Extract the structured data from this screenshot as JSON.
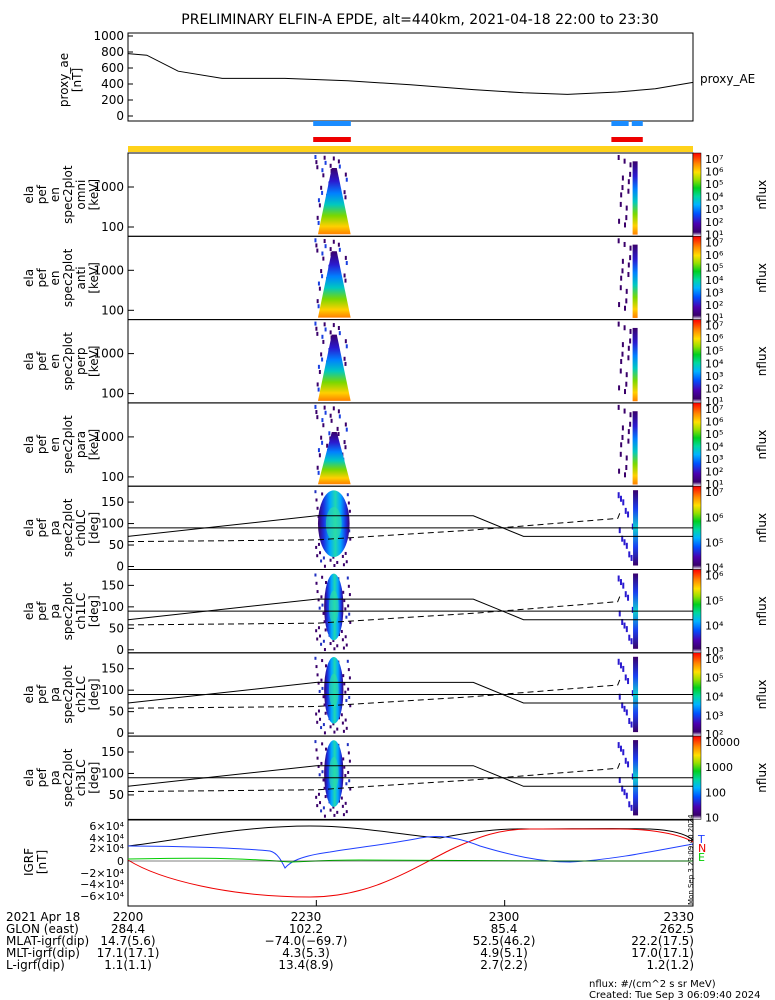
{
  "title": "PRELIMINARY ELFIN-A EPDE, alt=440km, 2021-04-18 22:00 to 23:30",
  "panels": {
    "proxy_ae": {
      "ylabel_lines": [
        "proxy_ae",
        "[nT]"
      ],
      "legend": "proxy_AE",
      "yticks": [
        "1000",
        "800",
        "600",
        "400",
        "200",
        "0"
      ],
      "ylim": [
        0,
        1000
      ]
    },
    "spectra": [
      {
        "ylabel_lines": [
          "ela",
          "pef",
          "en",
          "spec2plot",
          "omni",
          "[keV]"
        ],
        "yticks": [
          "1000",
          "100"
        ]
      },
      {
        "ylabel_lines": [
          "ela",
          "pef",
          "en",
          "spec2plot",
          "anti",
          "[keV]"
        ],
        "yticks": [
          "1000",
          "100"
        ]
      },
      {
        "ylabel_lines": [
          "ela",
          "pef",
          "en",
          "spec2plot",
          "perp",
          "[keV]"
        ],
        "yticks": [
          "1000",
          "100"
        ]
      },
      {
        "ylabel_lines": [
          "ela",
          "pef",
          "en",
          "spec2plot",
          "para",
          "[keV]"
        ],
        "yticks": [
          "1000",
          "100"
        ]
      }
    ],
    "pitch_angle": [
      {
        "ylabel_lines": [
          "ela",
          "pef",
          "pa",
          "spec2plot",
          "ch0LC",
          "[deg]"
        ],
        "yticks": [
          "150",
          "100",
          "50",
          "0"
        ]
      },
      {
        "ylabel_lines": [
          "ela",
          "pef",
          "pa",
          "spec2plot",
          "ch1LC",
          "[deg]"
        ],
        "yticks": [
          "150",
          "100",
          "50",
          "0"
        ]
      },
      {
        "ylabel_lines": [
          "ela",
          "pef",
          "pa",
          "spec2plot",
          "ch2LC",
          "[deg]"
        ],
        "yticks": [
          "150",
          "100",
          "50",
          "0"
        ]
      },
      {
        "ylabel_lines": [
          "ela",
          "pef",
          "pa",
          "spec2plot",
          "ch3LC",
          "[deg]"
        ],
        "yticks": [
          "150",
          "100",
          "50"
        ]
      }
    ],
    "igrf": {
      "ylabel_lines": [
        "IGRF",
        "[nT]"
      ],
      "yticks": [
        "6×10⁴",
        "4×10⁴",
        "2×10⁴",
        "0",
        "−2×10⁴",
        "−4×10⁴",
        "−6×10⁴"
      ],
      "legend": [
        "T",
        "N",
        "E"
      ],
      "side_note": "Mon Sep  3 23:09:40 2024"
    }
  },
  "colorbars": [
    {
      "label": "nflux",
      "ticks": [
        "10⁷",
        "10⁶",
        "10⁵",
        "10⁴",
        "10³",
        "10²",
        "10¹"
      ]
    },
    {
      "label": "nflux",
      "ticks": [
        "10⁷",
        "10⁶",
        "10⁵",
        "10⁴",
        "10³",
        "10²",
        "10¹"
      ]
    },
    {
      "label": "nflux",
      "ticks": [
        "10⁷",
        "10⁶",
        "10⁵",
        "10⁴",
        "10³",
        "10²",
        "10¹"
      ]
    },
    {
      "label": "nflux",
      "ticks": [
        "10⁷",
        "10⁶",
        "10⁵",
        "10⁴",
        "10³",
        "10²",
        "10¹"
      ]
    },
    {
      "label": "nflux",
      "ticks": [
        "10⁷",
        "10⁶",
        "10⁵",
        "10⁴"
      ]
    },
    {
      "label": "nflux",
      "ticks": [
        "10⁶",
        "10⁵",
        "10⁴",
        "10³"
      ]
    },
    {
      "label": "nflux",
      "ticks": [
        "10⁶",
        "10⁵",
        "10⁴",
        "10³",
        "10²"
      ]
    },
    {
      "label": "nflux",
      "ticks": [
        "10000",
        "1000",
        "100",
        "10"
      ]
    }
  ],
  "bottom_table": {
    "rows": [
      {
        "label": "2021 Apr 18",
        "values": [
          "2200",
          "2230",
          "2300",
          "2330"
        ]
      },
      {
        "label": "GLON (east)",
        "values": [
          "284.4",
          "102.2",
          "85.4",
          "262.5"
        ]
      },
      {
        "label": "MLAT-igrf(dip)",
        "values": [
          "14.7(5.6)",
          "−74.0(−69.7)",
          "52.5(46.2)",
          "22.2(17.5)"
        ]
      },
      {
        "label": "MLT-igrf(dip)",
        "values": [
          "17.1(17.1)",
          "4.3(5.3)",
          "4.9(5.1)",
          "17.0(17.1)"
        ]
      },
      {
        "label": "L-igrf(dip)",
        "values": [
          "1.1(1.1)",
          "13.4(8.9)",
          "2.7(2.2)",
          "1.2(1.2)"
        ]
      }
    ]
  },
  "footer": {
    "units": "nflux: #/(cm^2 s sr MeV)",
    "created": "Created: Tue Sep  3 06:09:40 2024"
  },
  "chart_data": {
    "type": "line",
    "x_range": [
      "22:00",
      "23:30"
    ],
    "x_tick_labels": [
      "2200",
      "2230",
      "2300",
      "2330"
    ],
    "series": [
      {
        "name": "proxy_AE",
        "x_min": [
          0,
          3,
          8,
          15,
          25,
          35,
          45,
          55,
          63,
          70,
          78,
          84,
          90
        ],
        "y": [
          780,
          760,
          560,
          470,
          470,
          440,
          390,
          330,
          290,
          270,
          300,
          340,
          420
        ]
      }
    ],
    "science_zones": [
      {
        "x_start_min": 29.5,
        "x_end_min": 35.5,
        "color": "#1a8cff"
      },
      {
        "x_start_min": 29.5,
        "x_end_min": 35.5,
        "color": "#ee0000"
      },
      {
        "x_start_min": 77.0,
        "x_end_min": 82.0,
        "color": "#1a8cff"
      },
      {
        "x_start_min": 77.0,
        "x_end_min": 82.0,
        "color": "#ee0000"
      }
    ],
    "igrf_series": [
      {
        "name": "T",
        "color": "#000000"
      },
      {
        "name": "N",
        "color": "#ee0000"
      },
      {
        "name": "E",
        "color": "#00cc00"
      },
      {
        "name": "blue",
        "color": "#1f3fff"
      }
    ],
    "colors": {
      "yellow_bar": "#ffd21a",
      "zone_blue": "#1a8cff",
      "zone_red": "#ee0000"
    }
  }
}
